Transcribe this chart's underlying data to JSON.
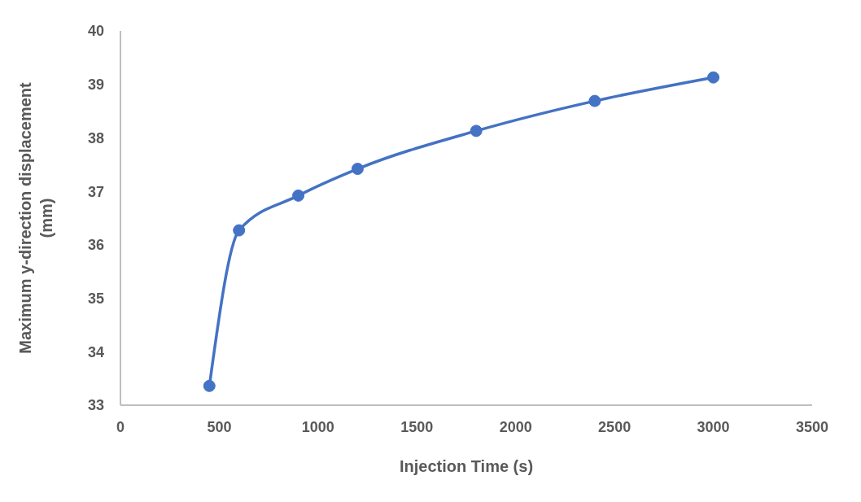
{
  "chart_data": {
    "type": "line",
    "xlabel": "Injection Time (s)",
    "ylabel": "Maximum y-direction displacement (mm)",
    "x": [
      450,
      600,
      900,
      1200,
      1800,
      2400,
      3000
    ],
    "series": [
      {
        "color": "#4472c4",
        "values": [
          33.36,
          36.27,
          36.92,
          37.42,
          38.13,
          38.69,
          39.13
        ]
      }
    ],
    "xlim": [
      0,
      3500
    ],
    "xticks": [
      0,
      500,
      1000,
      1500,
      2000,
      2500,
      3000,
      3500
    ],
    "ylim": [
      33,
      40
    ],
    "yticks": [
      33,
      34,
      35,
      36,
      37,
      38,
      39,
      40
    ],
    "grid": false,
    "legend": false,
    "marker": "circle",
    "line_style": "solid"
  }
}
